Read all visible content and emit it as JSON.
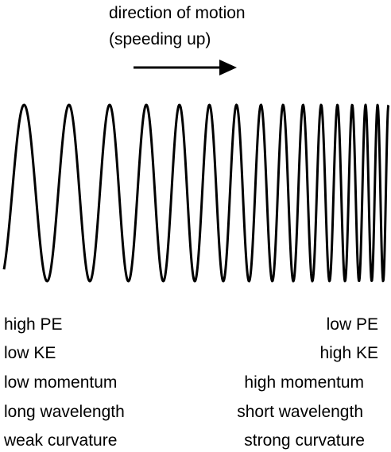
{
  "caption": {
    "line1": "direction of motion",
    "line2": "(speeding up)"
  },
  "left_labels": [
    "high PE",
    "low KE",
    "low momentum",
    "long wavelength",
    "weak curvature"
  ],
  "right_labels": [
    "low PE",
    "high KE",
    "high momentum",
    "short wavelength",
    "strong curvature"
  ],
  "colors": {
    "ink": "#000000",
    "background": "#ffffff"
  }
}
